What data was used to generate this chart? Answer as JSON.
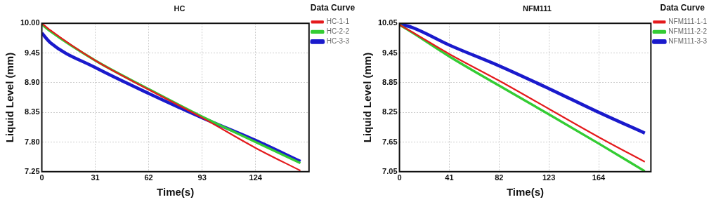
{
  "chart_data": [
    {
      "type": "line",
      "title": "HC",
      "xlabel": "Time(s)",
      "ylabel": "Liquid Level (mm)",
      "legend_title": "Data Curve",
      "legend": "right",
      "grid": true,
      "marker": "none",
      "line_style": "solid",
      "xlim": [
        0,
        155
      ],
      "xticks": [
        0,
        31,
        62,
        93,
        124
      ],
      "ylim": [
        7.25,
        10
      ],
      "yticks": [
        {
          "value": 7.25,
          "label": "7.25"
        },
        {
          "value": 7.8,
          "label": "7.80"
        },
        {
          "value": 8.35,
          "label": "8.35"
        },
        {
          "value": 8.9,
          "label": "8.90"
        },
        {
          "value": 9.45,
          "label": "9.45"
        },
        {
          "value": 10,
          "label": "10.00"
        }
      ],
      "series": [
        {
          "name": "HC-1-1",
          "color": "#e41a1c",
          "x": [
            0,
            5,
            31,
            62,
            93,
            124,
            150
          ],
          "values": [
            10.0,
            9.87,
            9.31,
            8.77,
            8.25,
            7.69,
            7.27
          ]
        },
        {
          "name": "HC-2-2",
          "color": "#33cc33",
          "x": [
            0,
            5,
            31,
            62,
            93,
            124,
            150
          ],
          "values": [
            9.98,
            9.85,
            9.31,
            8.78,
            8.27,
            7.8,
            7.41
          ]
        },
        {
          "name": "HC-3-3",
          "color": "#1a1acc",
          "x": [
            0,
            5,
            31,
            62,
            93,
            124,
            150
          ],
          "values": [
            9.82,
            9.64,
            9.18,
            8.7,
            8.25,
            7.83,
            7.44
          ]
        }
      ]
    },
    {
      "type": "line",
      "title": "NFM111",
      "xlabel": "Time(s)",
      "ylabel": "Liquid Level (mm)",
      "legend_title": "Data Curve",
      "legend": "right",
      "grid": true,
      "marker": "none",
      "line_style": "solid",
      "xlim": [
        0,
        207
      ],
      "xticks": [
        0,
        41,
        82,
        123,
        164
      ],
      "ylim": [
        7.05,
        10.05
      ],
      "yticks": [
        7.05,
        7.65,
        8.25,
        8.85,
        9.45,
        10.05
      ],
      "series": [
        {
          "name": "NFM111-1-1",
          "color": "#e41a1c",
          "x": [
            0,
            10,
            41,
            82,
            123,
            164,
            202
          ],
          "values": [
            10.02,
            9.88,
            9.43,
            8.89,
            8.32,
            7.75,
            7.25
          ]
        },
        {
          "name": "NFM111-2-2",
          "color": "#33cc33",
          "x": [
            0,
            10,
            41,
            82,
            123,
            164,
            202
          ],
          "values": [
            10.02,
            9.87,
            9.38,
            8.79,
            8.21,
            7.62,
            7.06
          ]
        },
        {
          "name": "NFM111-3-3",
          "color": "#1a1acc",
          "x": [
            0,
            10,
            41,
            82,
            123,
            164,
            202
          ],
          "values": [
            10.03,
            9.97,
            9.61,
            9.19,
            8.73,
            8.25,
            7.83
          ]
        }
      ]
    }
  ]
}
